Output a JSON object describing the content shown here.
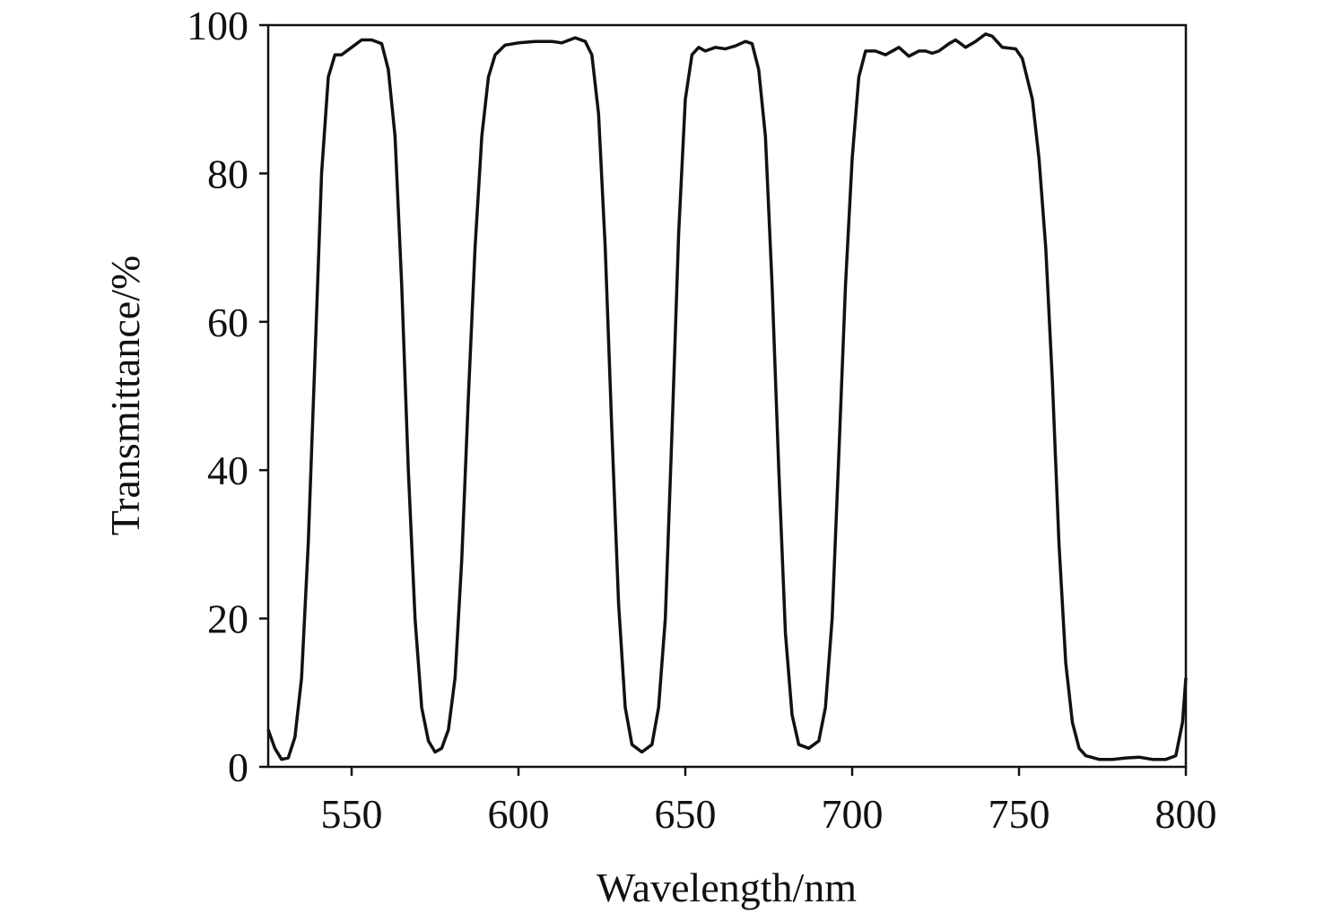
{
  "chart_data": {
    "type": "line",
    "xlabel": "Wavelength/nm",
    "ylabel": "Transmittance/%",
    "color": "#111111",
    "x": [
      525,
      527,
      529,
      531,
      533,
      535,
      537,
      539,
      541,
      543,
      545,
      547,
      550,
      553,
      556,
      559,
      561,
      563,
      565,
      567,
      569,
      571,
      573,
      575,
      577,
      579,
      581,
      583,
      585,
      587,
      589,
      591,
      593,
      596,
      600,
      605,
      610,
      613,
      617,
      620,
      622,
      624,
      626,
      628,
      630,
      632,
      634,
      637,
      640,
      642,
      644,
      646,
      648,
      650,
      652,
      654,
      656,
      659,
      662,
      665,
      668,
      670,
      672,
      674,
      676,
      678,
      680,
      682,
      684,
      687,
      690,
      692,
      694,
      696,
      698,
      700,
      702,
      704,
      707,
      710,
      714,
      717,
      720,
      722,
      724,
      726,
      729,
      731,
      734,
      737,
      740,
      742,
      745,
      749,
      751,
      754,
      756,
      758,
      760,
      762,
      764,
      766,
      768,
      770,
      774,
      778,
      782,
      786,
      790,
      794,
      797,
      799,
      800
    ],
    "values": [
      5,
      2.5,
      1,
      1.2,
      4,
      12,
      30,
      55,
      80,
      93,
      96,
      96,
      97,
      98,
      98,
      97.5,
      94,
      85,
      65,
      40,
      20,
      8,
      3.5,
      2,
      2.5,
      5,
      12,
      28,
      50,
      70,
      85,
      93,
      96,
      97.3,
      97.6,
      97.8,
      97.8,
      97.6,
      98.3,
      97.8,
      96,
      88,
      70,
      45,
      22,
      8,
      3,
      2,
      3,
      8,
      20,
      45,
      72,
      90,
      96,
      97,
      96.5,
      97,
      96.8,
      97.2,
      97.8,
      97.5,
      94,
      85,
      65,
      40,
      18,
      7,
      3,
      2.5,
      3.5,
      8,
      20,
      42,
      65,
      82,
      93,
      96.5,
      96.5,
      96,
      97,
      95.8,
      96.5,
      96.5,
      96.2,
      96.5,
      97.5,
      98,
      97,
      97.8,
      98.8,
      98.5,
      97,
      96.8,
      95.5,
      90,
      82,
      70,
      52,
      30,
      14,
      6,
      2.5,
      1.5,
      1,
      1,
      1.2,
      1.3,
      1,
      1,
      1.5,
      6,
      12
    ],
    "xlim": [
      525,
      800
    ],
    "xticks": [
      550,
      600,
      650,
      700,
      750,
      800
    ],
    "ylim": [
      0,
      100
    ],
    "yticks": [
      0,
      20,
      40,
      60,
      80,
      100
    ]
  }
}
